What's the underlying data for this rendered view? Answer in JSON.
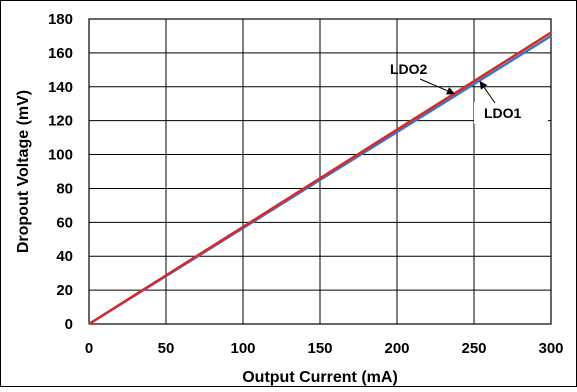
{
  "chart_data": {
    "type": "line",
    "xlabel": "Output Current (mA)",
    "ylabel": "Dropout Voltage (mV)",
    "xlim": [
      0,
      300
    ],
    "ylim": [
      0,
      180
    ],
    "x_ticks": [
      "0",
      "50",
      "100",
      "150",
      "200",
      "250",
      "300"
    ],
    "y_ticks": [
      "0",
      "20",
      "40",
      "60",
      "80",
      "100",
      "120",
      "140",
      "160",
      "180"
    ],
    "grid": true,
    "legend": "none",
    "series": [
      {
        "name": "LDO1",
        "color": "#3b78c3",
        "x": [
          0,
          50,
          100,
          150,
          200,
          250,
          300
        ],
        "y": [
          0,
          28.3,
          56.6,
          85,
          113.3,
          141.6,
          170
        ]
      },
      {
        "name": "LDO2",
        "color": "#d42a2a",
        "x": [
          0,
          50,
          100,
          150,
          200,
          250,
          300
        ],
        "y": [
          0,
          28.7,
          57.3,
          86,
          114.7,
          143.3,
          172
        ]
      }
    ],
    "annotations": [
      {
        "text": "LDO2",
        "series": "LDO2",
        "point": [
          237,
          136
        ]
      },
      {
        "text": "LDO1",
        "series": "LDO1",
        "point": [
          254,
          143
        ]
      }
    ]
  }
}
